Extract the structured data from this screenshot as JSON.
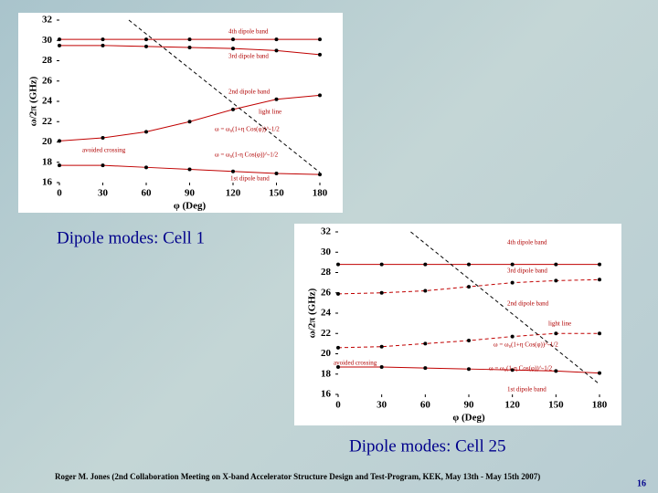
{
  "chart_data": [
    {
      "type": "line",
      "x_label": "φ (Deg)",
      "y_label": "ω/2π (GHz)",
      "xlim": [
        0,
        180
      ],
      "xticks": [
        0,
        30,
        60,
        90,
        120,
        150,
        180
      ],
      "ylim": [
        16,
        32
      ],
      "yticks": [
        16,
        18,
        20,
        22,
        24,
        26,
        28,
        30,
        32
      ],
      "series": [
        {
          "name": "4th dipole band",
          "color": "#c00000",
          "dashed": false,
          "markers": true,
          "x": [
            0,
            30,
            60,
            90,
            120,
            150,
            180
          ],
          "values": [
            30.1,
            30.1,
            30.1,
            30.1,
            30.1,
            30.1,
            30.1
          ]
        },
        {
          "name": "3rd dipole band",
          "color": "#c00000",
          "dashed": false,
          "markers": true,
          "x": [
            0,
            30,
            60,
            90,
            120,
            150,
            180
          ],
          "values": [
            29.5,
            29.5,
            29.4,
            29.3,
            29.2,
            29.0,
            28.6
          ]
        },
        {
          "name": "2nd dipole band",
          "color": "#c00000",
          "dashed": false,
          "markers": true,
          "x": [
            0,
            30,
            60,
            90,
            120,
            150,
            180
          ],
          "values": [
            20.1,
            20.4,
            21.0,
            22.0,
            23.2,
            24.2,
            24.6
          ]
        },
        {
          "name": "1st dipole band",
          "color": "#c00000",
          "dashed": false,
          "markers": true,
          "x": [
            0,
            30,
            60,
            90,
            120,
            150,
            180
          ],
          "values": [
            17.7,
            17.7,
            17.5,
            17.3,
            17.1,
            16.9,
            16.8
          ]
        },
        {
          "name": "light line",
          "color": "#000000",
          "dashed": true,
          "markers": false,
          "x": [
            48,
            180
          ],
          "values": [
            32,
            17
          ]
        }
      ],
      "annotations": [
        "4th dipole band",
        "3rd dipole band",
        "2nd dipole band",
        "light line",
        "ω = ω₀(1+η Cos(φ))^-1/2",
        "avoided crossing",
        "ω = ω₀(1-η Cos(φ))^-1/2",
        "1st dipole band"
      ]
    },
    {
      "type": "line",
      "x_label": "φ (Deg)",
      "y_label": "ω/2π (GHz)",
      "xlim": [
        0,
        180
      ],
      "xticks": [
        0,
        30,
        60,
        90,
        120,
        150,
        180
      ],
      "ylim": [
        16,
        32
      ],
      "yticks": [
        16,
        18,
        20,
        22,
        24,
        26,
        28,
        30,
        32
      ],
      "series": [
        {
          "name": "4th dipole band",
          "color": "#c00000",
          "dashed": false,
          "markers": true,
          "x": [
            0,
            30,
            60,
            90,
            120,
            150,
            180
          ],
          "values": [
            28.8,
            28.8,
            28.8,
            28.8,
            28.8,
            28.8,
            28.8
          ]
        },
        {
          "name": "3rd dipole band",
          "color": "#c00000",
          "dashed": true,
          "markers": true,
          "x": [
            0,
            30,
            60,
            90,
            120,
            150,
            180
          ],
          "values": [
            25.9,
            26.0,
            26.2,
            26.6,
            27.0,
            27.2,
            27.3
          ]
        },
        {
          "name": "2nd dipole band",
          "color": "#c00000",
          "dashed": true,
          "markers": true,
          "x": [
            0,
            30,
            60,
            90,
            120,
            150,
            180
          ],
          "values": [
            20.6,
            20.7,
            21.0,
            21.3,
            21.7,
            22.0,
            22.0
          ]
        },
        {
          "name": "1st dipole band",
          "color": "#c00000",
          "dashed": false,
          "markers": true,
          "x": [
            0,
            30,
            60,
            90,
            120,
            150,
            180
          ],
          "values": [
            18.7,
            18.7,
            18.6,
            18.5,
            18.4,
            18.3,
            18.1
          ]
        },
        {
          "name": "light line",
          "color": "#000000",
          "dashed": true,
          "markers": false,
          "x": [
            50,
            180
          ],
          "values": [
            32,
            17
          ]
        }
      ],
      "annotations": [
        "4th dipole band",
        "3rd dipole band",
        "2nd dipole band",
        "light line",
        "ω = ω₀(1+η Cos(φ))^-1/2",
        "avoided crossing",
        "ω = ω₀(1-η Cos(φ))^-1/2",
        "1st dipole band"
      ]
    }
  ],
  "captions": [
    "Dipole modes: Cell 1",
    "Dipole modes: Cell 25"
  ],
  "footer": "Roger M. Jones (2nd Collaboration Meeting on X-band Accelerator Structure Design and Test-Program, KEK, May 13th - May 15th 2007)",
  "page_number": "16"
}
